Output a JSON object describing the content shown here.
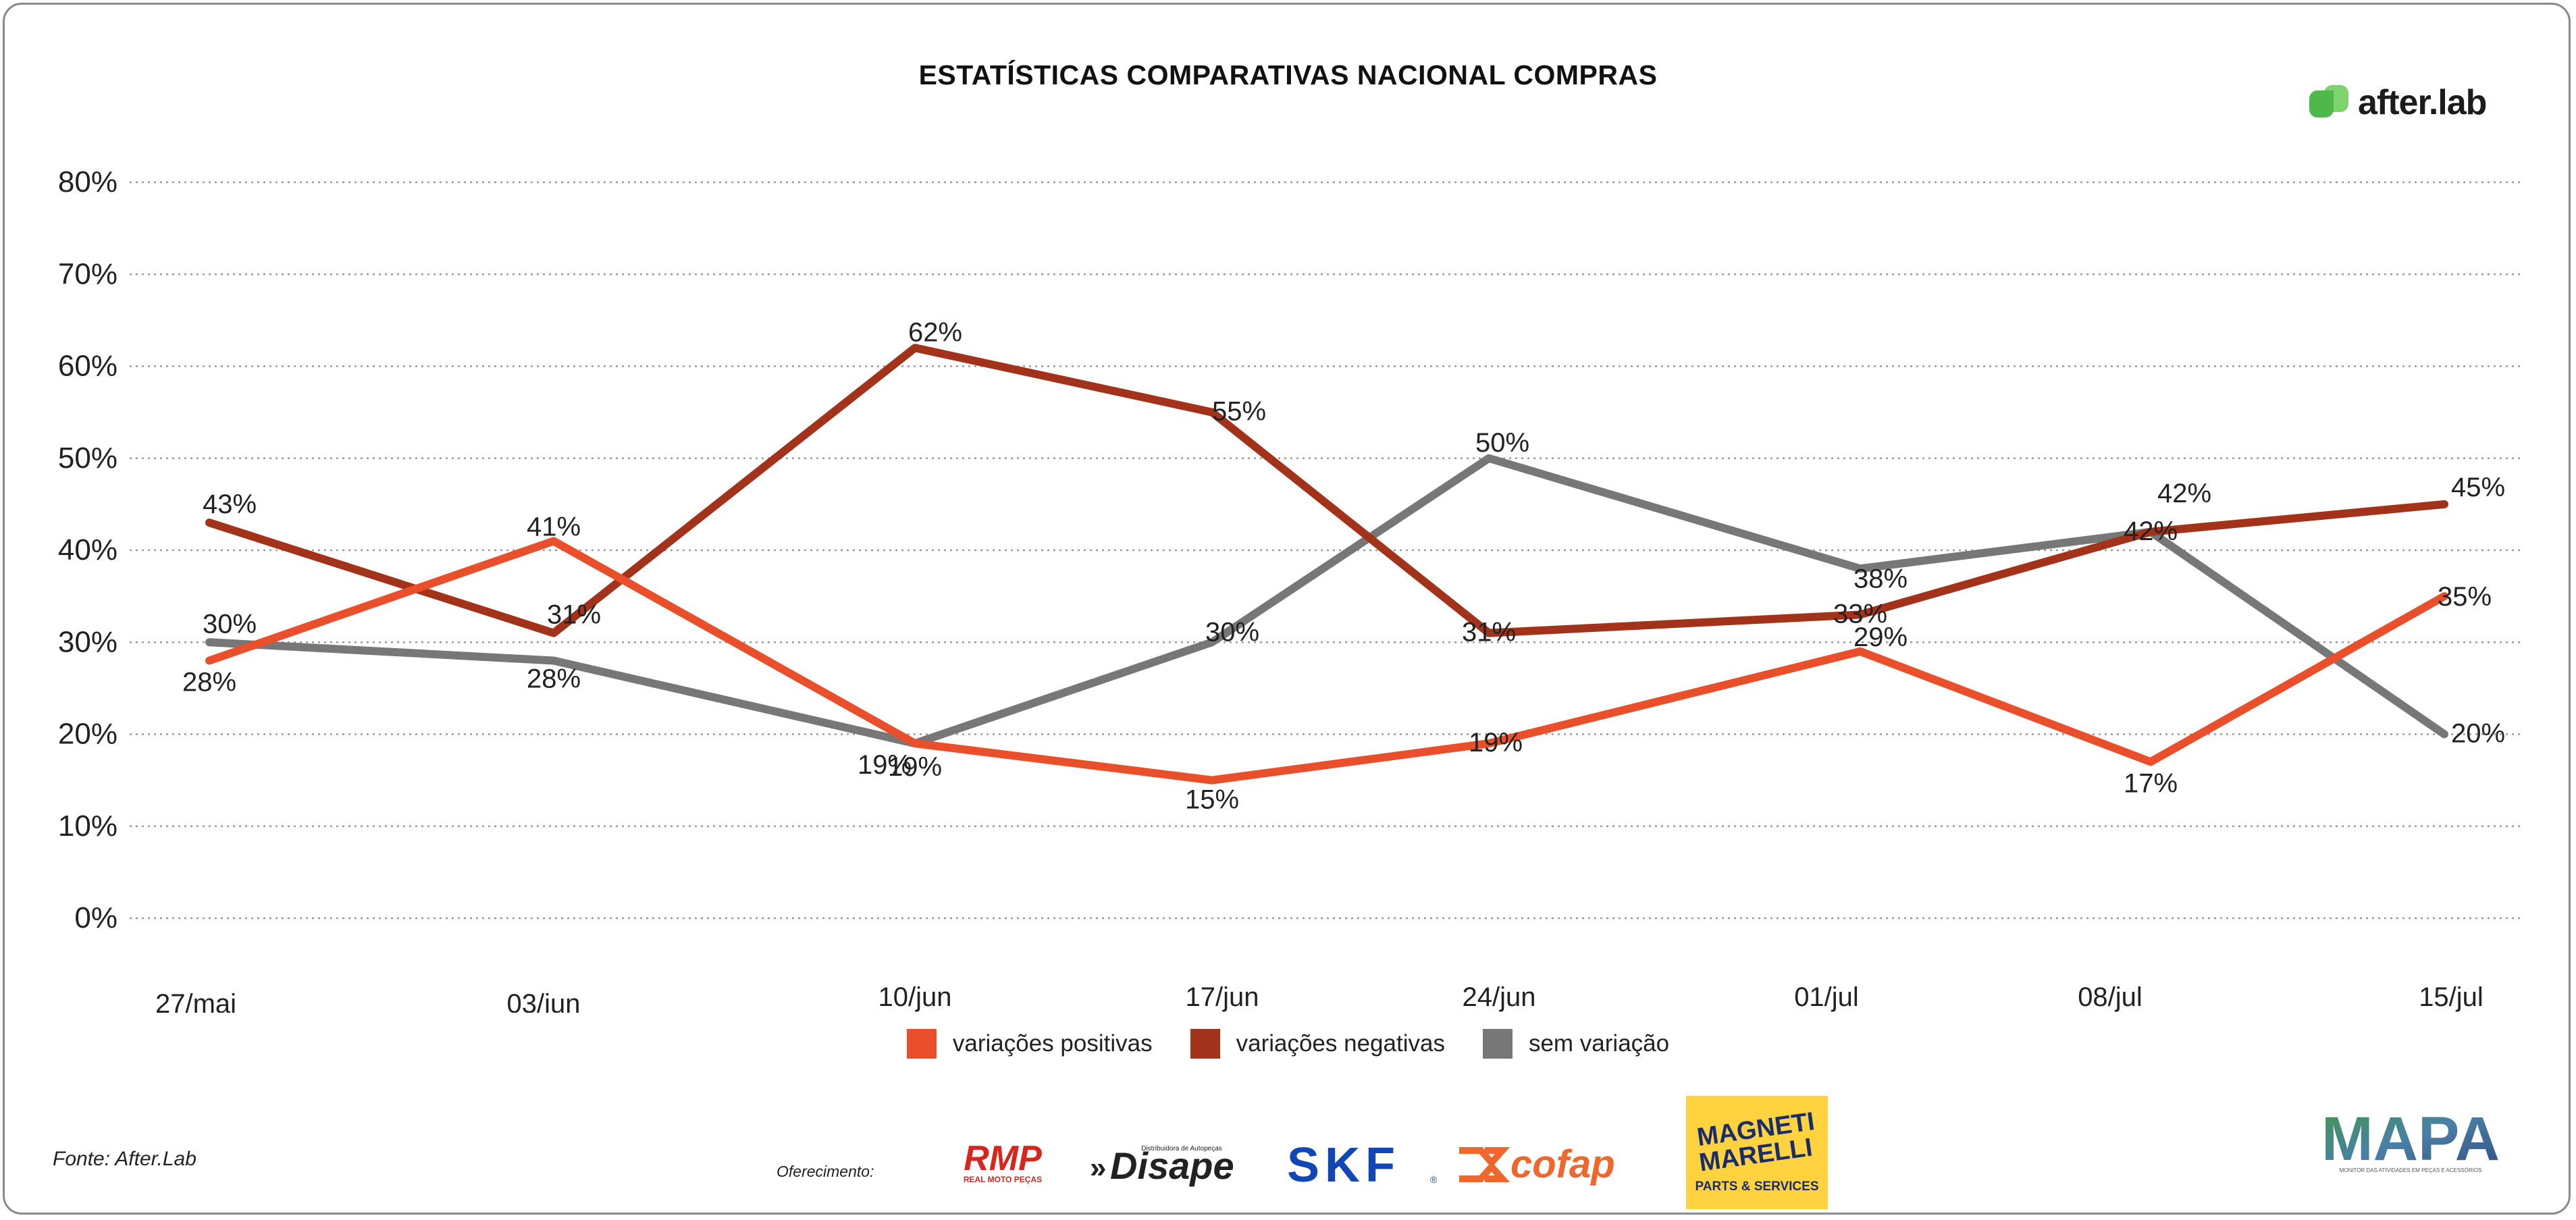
{
  "header": {
    "title": "ESTATÍSTICAS COMPARATIVAS NACIONAL COMPRAS",
    "brand": "after.lab"
  },
  "colors": {
    "positivas": "#e94f2a",
    "negativas": "#a3321a",
    "sem_variacao": "#777777",
    "grid": "#9a9a9a",
    "brand_green": "#4fb84a",
    "magneti_yellow": "#ffd23f"
  },
  "chart_data": {
    "type": "line",
    "title": "ESTATÍSTICAS COMPARATIVAS NACIONAL COMPRAS",
    "xlabel": "",
    "ylabel": "",
    "x": [
      "27/mai",
      "03/jun",
      "10/jun",
      "17/jun",
      "24/jun",
      "01/jul",
      "08/jul",
      "15/jul"
    ],
    "y_ticks": [
      "0%",
      "10%",
      "20%",
      "30%",
      "40%",
      "50%",
      "60%",
      "70%",
      "80%"
    ],
    "ylim": [
      0,
      80
    ],
    "grid": true,
    "legend_position": "bottom",
    "series": [
      {
        "name": "variações positivas",
        "key": "positivas",
        "values": [
          28,
          41,
          19,
          15,
          19,
          29,
          17,
          35
        ],
        "labels": [
          "28%",
          "41%",
          "19%",
          "15%",
          "19%",
          "29%",
          "17%",
          "35%"
        ]
      },
      {
        "name": "variações negativas",
        "key": "negativas",
        "values": [
          43,
          31,
          62,
          55,
          31,
          33,
          42,
          45
        ],
        "labels": [
          "43%",
          "31%",
          "62%",
          "55%",
          "31%",
          "33%",
          "42%",
          "45%"
        ]
      },
      {
        "name": "sem variação",
        "key": "sem_variacao",
        "values": [
          30,
          28,
          19,
          30,
          50,
          38,
          42,
          20
        ],
        "labels": [
          "30%",
          "28%",
          "19%",
          "30%",
          "50%",
          "38%",
          "42%",
          "20%"
        ]
      }
    ]
  },
  "legend": {
    "items": [
      {
        "label": "variações positivas"
      },
      {
        "label": "variações negativas"
      },
      {
        "label": "sem variação"
      }
    ]
  },
  "footer": {
    "source": "Fonte: After.Lab",
    "sponsor_label": "Oferecimento:",
    "sponsors": {
      "rmp": "RMP",
      "rmp_sub": "REAL MOTO PEÇAS",
      "disape": "Disape",
      "disape_sub": "Distribuidora de Autopeças",
      "skf": "SKF",
      "cofap": "cofap",
      "magneti_line1": "MAGNETI",
      "magneti_line2": "MARELLI",
      "magneti_sub": "PARTS & SERVICES",
      "mapa": "MAPA",
      "mapa_sub": "MONITOR DAS ATIVIDADES EM PEÇAS E ACESSÓRIOS"
    }
  }
}
